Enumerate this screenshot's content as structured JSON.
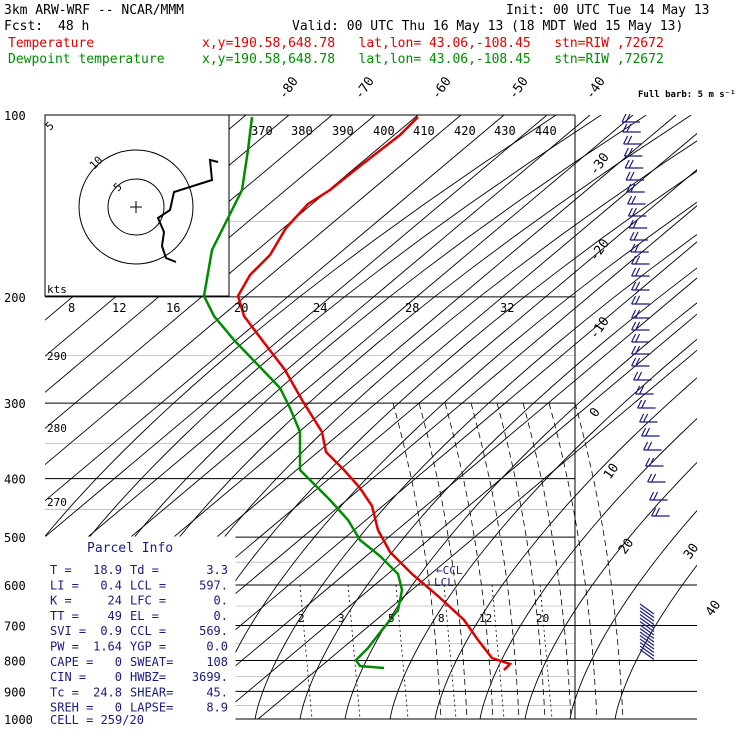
{
  "header": {
    "model": "3km ARW-WRF -- NCAR/MMM",
    "init": "Init: 00 UTC Tue 14 May 13",
    "fcst_label": "Fcst:",
    "fcst_value": "48 h",
    "valid": "Valid: 00 UTC Thu 16 May 13 (18 MDT Wed 15 May 13)",
    "temperature_line": {
      "name": "Temperature",
      "info": "x,y=190.58,648.78   lat,lon= 43.06,-108.45   stn=RIW ,72672"
    },
    "dewpoint_line": {
      "name": "Dewpoint temperature",
      "info": "x,y=190.58,648.78   lat,lon= 43.06,-108.45   stn=RIW ,72672"
    }
  },
  "colors": {
    "temperature": "#e00000",
    "dewpoint": "#008c00",
    "barbs": "#1a1a80",
    "text": "#000000"
  },
  "chart_data": {
    "type": "line",
    "pressure_levels": [
      100,
      200,
      300,
      400,
      500,
      600,
      700,
      800,
      900,
      1000
    ],
    "isotherm_labels": [
      "-80",
      "-70",
      "-60",
      "-50",
      "-40",
      "-30",
      "-20",
      "-10",
      "0",
      "10",
      "20",
      "30",
      "40"
    ],
    "dry_adiabat_labels": [
      "370",
      "380",
      "390",
      "400",
      "410",
      "420",
      "430",
      "440"
    ],
    "moist_adiabat_labels": [
      "8",
      "12",
      "16",
      "20",
      "24",
      "28",
      "32"
    ],
    "left_theta_labels": [
      "290",
      "280",
      "270"
    ],
    "mixing_ratio_labels": [
      "2",
      "3",
      "5",
      "8",
      "12",
      "20"
    ],
    "series": [
      {
        "name": "Temperature",
        "points": [
          [
            100,
            -62
          ],
          [
            120,
            -60
          ],
          [
            150,
            -58
          ],
          [
            170,
            -57
          ],
          [
            200,
            -56
          ],
          [
            240,
            -48
          ],
          [
            300,
            -38
          ],
          [
            350,
            -30
          ],
          [
            400,
            -24
          ],
          [
            500,
            -14
          ],
          [
            550,
            -9
          ],
          [
            600,
            -4
          ],
          [
            650,
            1
          ],
          [
            700,
            6
          ],
          [
            750,
            11
          ],
          [
            800,
            16
          ],
          [
            820,
            18.9
          ]
        ]
      },
      {
        "name": "Dewpoint temperature",
        "points": [
          [
            100,
            -75
          ],
          [
            130,
            -74
          ],
          [
            160,
            -73
          ],
          [
            200,
            -75
          ],
          [
            250,
            -68
          ],
          [
            300,
            -57
          ],
          [
            350,
            -52
          ],
          [
            400,
            -46
          ],
          [
            450,
            -36
          ],
          [
            500,
            -28
          ],
          [
            550,
            -21
          ],
          [
            600,
            -14
          ],
          [
            650,
            -10
          ],
          [
            700,
            -7
          ],
          [
            750,
            -3
          ],
          [
            800,
            1
          ],
          [
            820,
            3.3
          ]
        ]
      }
    ],
    "hodograph": {
      "kts_label": "kts",
      "rings": [
        "5",
        "10"
      ]
    },
    "barbs_label": "Full barb: 5 m s⁻¹",
    "annotations": [
      "←CCL",
      "LCL"
    ]
  },
  "parcel_info": {
    "title": "Parcel Info",
    "rows": [
      [
        "T  =",
        "18.9",
        "Td =",
        "3.3"
      ],
      [
        "LI =",
        "0.4",
        "LCL =",
        "597."
      ],
      [
        "K  =",
        "24",
        "LFC =",
        "0."
      ],
      [
        "TT =",
        "49",
        "EL  =",
        "0."
      ],
      [
        "SVI =",
        "0.9",
        "CCL =",
        "569."
      ],
      [
        "PW =",
        "1.64",
        "YGP =",
        "0.0"
      ],
      [
        "CAPE =",
        "0",
        "SWEAT=",
        "108"
      ],
      [
        "CIN =",
        "0",
        "HWBZ=",
        "3699."
      ],
      [
        "Tc =",
        "24.8",
        "SHEAR=",
        "45."
      ],
      [
        "SREH =",
        "0",
        "LAPSE=",
        "8.9"
      ]
    ],
    "cell": "CELL = 259/20"
  }
}
